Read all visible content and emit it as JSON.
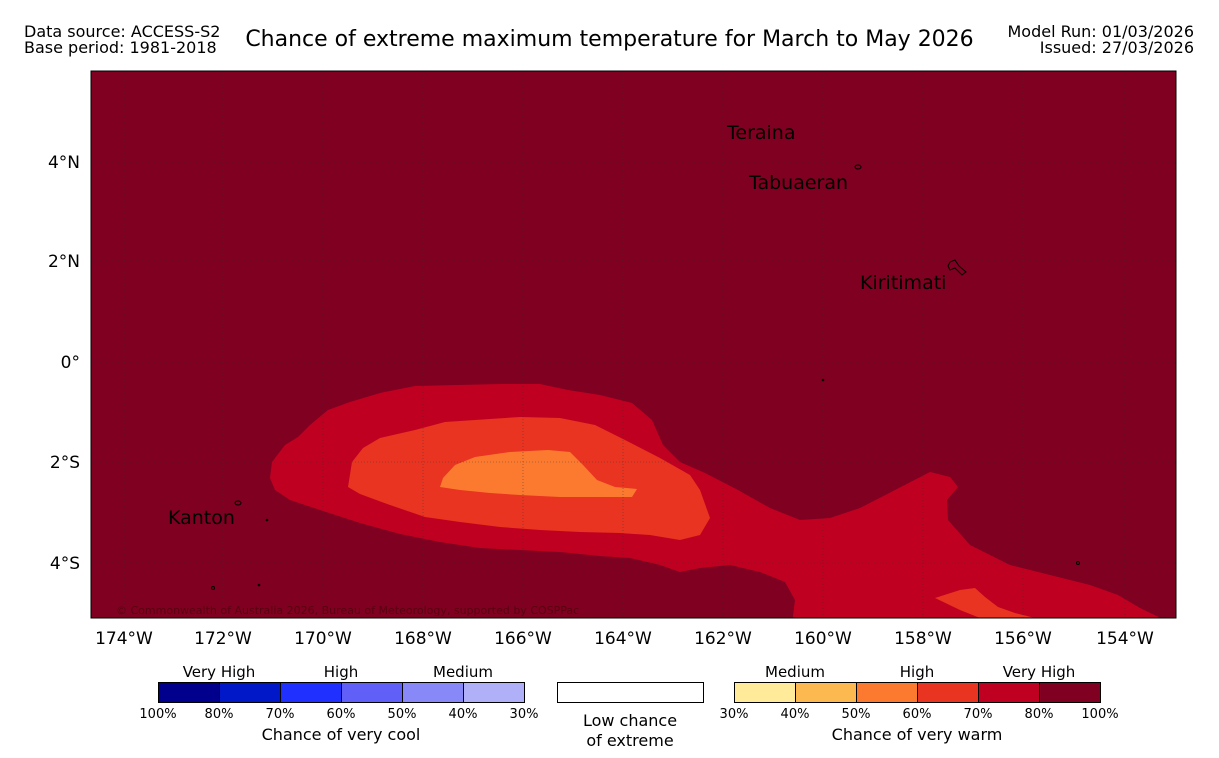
{
  "header": {
    "data_source": "Data source: ACCESS-S2",
    "base_period": "Base period: 1981-2018",
    "title": "Chance of extreme maximum temperature for March to May 2026",
    "model_run": "Model Run: 01/03/2026",
    "issued": "Issued: 27/03/2026"
  },
  "map": {
    "background_color": "#7f0020",
    "lon_labels": [
      "174°W",
      "172°W",
      "170°W",
      "168°W",
      "166°W",
      "164°W",
      "162°W",
      "160°W",
      "158°W",
      "156°W",
      "154°W"
    ],
    "lat_labels": [
      "4°N",
      "2°N",
      "0°",
      "2°S",
      "4°S"
    ],
    "places": [
      "Teraina",
      "Tabuaeran",
      "Kiritimati",
      "Kanton"
    ],
    "copyright": "© Commonwealth of Australia 2026, Bureau of Meteorology, supported by COSPPac"
  },
  "legend": {
    "cool": {
      "categories": [
        "Very High",
        "High",
        "Medium"
      ],
      "colors": [
        "#00008c",
        "#0018c8",
        "#2030ff",
        "#6060f8",
        "#8888f8",
        "#b0b0f8"
      ],
      "ticks": [
        "100%",
        "80%",
        "70%",
        "60%",
        "50%",
        "40%",
        "30%"
      ],
      "title": "Chance of very cool"
    },
    "low": {
      "line1": "Low chance",
      "line2": "of extreme",
      "color": "#ffffff"
    },
    "warm": {
      "categories": [
        "Medium",
        "High",
        "Very High"
      ],
      "colors": [
        "#ffeb99",
        "#fcb950",
        "#fc7a30",
        "#e83420",
        "#c00020",
        "#7f0020"
      ],
      "ticks": [
        "30%",
        "40%",
        "50%",
        "60%",
        "70%",
        "80%",
        "100%"
      ],
      "title": "Chance of very warm"
    }
  }
}
